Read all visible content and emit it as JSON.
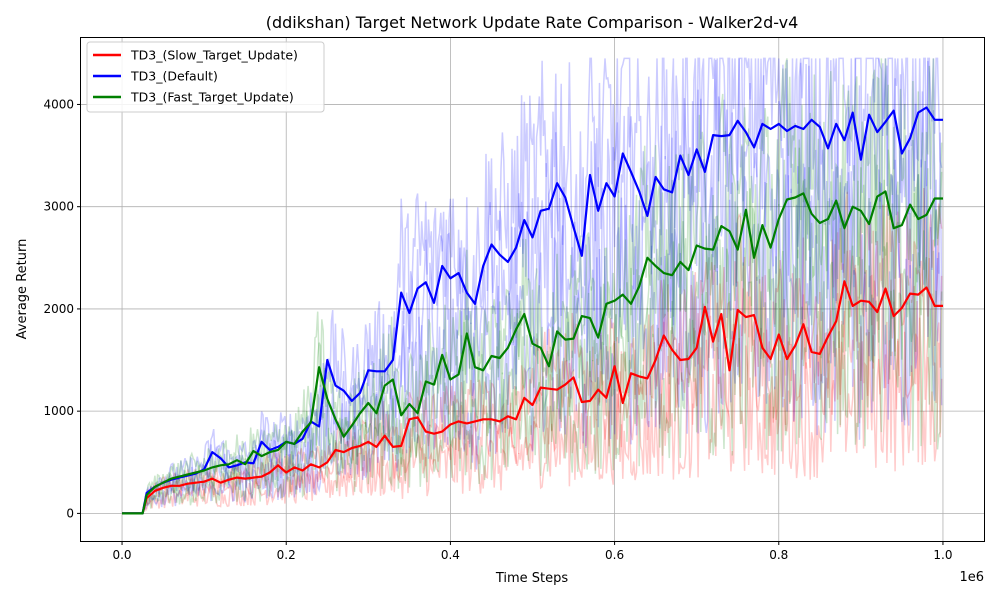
{
  "chart_data": {
    "type": "line",
    "title": "(ddikshan) Target Network Update Rate Comparison - Walker2d-v4",
    "xlabel": "Time Steps",
    "ylabel": "Average Return",
    "x_offset_label": "1e6",
    "xlim": [
      -0.05,
      1.05
    ],
    "ylim": [
      -270,
      4650
    ],
    "x_ticks": [
      0.0,
      0.2,
      0.4,
      0.6,
      0.8,
      1.0
    ],
    "x_tick_labels": [
      "0.0",
      "0.2",
      "0.4",
      "0.6",
      "0.8",
      "1.0"
    ],
    "y_ticks": [
      0,
      1000,
      2000,
      3000,
      4000
    ],
    "y_tick_labels": [
      "0",
      "1000",
      "2000",
      "3000",
      "4000"
    ],
    "grid": true,
    "legend_position": "top-left",
    "series": [
      {
        "name": "TD3_(Slow_Target_Update)",
        "color": "#ff0000",
        "x": [
          0.0,
          0.025,
          0.03,
          0.04,
          0.05,
          0.06,
          0.07,
          0.08,
          0.09,
          0.1,
          0.11,
          0.12,
          0.13,
          0.14,
          0.15,
          0.16,
          0.17,
          0.18,
          0.19,
          0.2,
          0.21,
          0.22,
          0.23,
          0.24,
          0.25,
          0.26,
          0.27,
          0.28,
          0.29,
          0.3,
          0.31,
          0.32,
          0.33,
          0.34,
          0.35,
          0.36,
          0.37,
          0.38,
          0.39,
          0.4,
          0.41,
          0.42,
          0.43,
          0.44,
          0.45,
          0.46,
          0.47,
          0.48,
          0.49,
          0.5,
          0.51,
          0.52,
          0.53,
          0.54,
          0.55,
          0.56,
          0.57,
          0.58,
          0.59,
          0.6,
          0.61,
          0.62,
          0.63,
          0.64,
          0.65,
          0.66,
          0.67,
          0.68,
          0.69,
          0.7,
          0.71,
          0.72,
          0.73,
          0.74,
          0.75,
          0.76,
          0.77,
          0.78,
          0.79,
          0.8,
          0.81,
          0.82,
          0.83,
          0.84,
          0.85,
          0.86,
          0.87,
          0.88,
          0.89,
          0.9,
          0.91,
          0.92,
          0.93,
          0.94,
          0.95,
          0.96,
          0.97,
          0.98,
          0.99,
          1.0
        ],
        "y": [
          0,
          0,
          150,
          220,
          250,
          270,
          270,
          290,
          300,
          310,
          340,
          300,
          330,
          350,
          340,
          350,
          360,
          400,
          470,
          400,
          450,
          420,
          480,
          450,
          500,
          620,
          600,
          640,
          660,
          700,
          650,
          760,
          650,
          660,
          920,
          940,
          800,
          780,
          800,
          870,
          900,
          880,
          900,
          920,
          920,
          900,
          950,
          920,
          1130,
          1060,
          1230,
          1220,
          1210,
          1260,
          1330,
          1090,
          1100,
          1210,
          1130,
          1440,
          1080,
          1370,
          1340,
          1320,
          1500,
          1740,
          1600,
          1500,
          1510,
          1620,
          2020,
          1680,
          1950,
          1400,
          1990,
          1920,
          1940,
          1620,
          1510,
          1750,
          1510,
          1640,
          1850,
          1580,
          1560,
          1730,
          1880,
          2270,
          2030,
          2080,
          2070,
          1970,
          2200,
          1930,
          2010,
          2150,
          2140,
          2210,
          2030,
          2030
        ]
      },
      {
        "name": "TD3_(Default)",
        "color": "#0000ff",
        "x": [
          0.0,
          0.025,
          0.03,
          0.04,
          0.05,
          0.06,
          0.07,
          0.08,
          0.09,
          0.1,
          0.11,
          0.12,
          0.13,
          0.14,
          0.15,
          0.16,
          0.17,
          0.18,
          0.19,
          0.2,
          0.21,
          0.22,
          0.23,
          0.24,
          0.25,
          0.26,
          0.27,
          0.28,
          0.29,
          0.3,
          0.31,
          0.32,
          0.33,
          0.34,
          0.35,
          0.36,
          0.37,
          0.38,
          0.39,
          0.4,
          0.41,
          0.42,
          0.43,
          0.44,
          0.45,
          0.46,
          0.47,
          0.48,
          0.49,
          0.5,
          0.51,
          0.52,
          0.53,
          0.54,
          0.55,
          0.56,
          0.57,
          0.58,
          0.59,
          0.6,
          0.61,
          0.62,
          0.63,
          0.64,
          0.65,
          0.66,
          0.67,
          0.68,
          0.69,
          0.7,
          0.71,
          0.72,
          0.73,
          0.74,
          0.75,
          0.76,
          0.77,
          0.78,
          0.79,
          0.8,
          0.81,
          0.82,
          0.83,
          0.84,
          0.85,
          0.86,
          0.87,
          0.88,
          0.89,
          0.9,
          0.91,
          0.92,
          0.93,
          0.94,
          0.95,
          0.96,
          0.97,
          0.98,
          0.99,
          1.0
        ],
        "y": [
          0,
          0,
          200,
          260,
          300,
          330,
          350,
          370,
          390,
          430,
          600,
          540,
          450,
          470,
          500,
          490,
          700,
          620,
          650,
          700,
          680,
          730,
          900,
          850,
          1500,
          1250,
          1200,
          1100,
          1180,
          1400,
          1390,
          1390,
          1500,
          2160,
          1960,
          2200,
          2260,
          2060,
          2420,
          2300,
          2350,
          2160,
          2050,
          2420,
          2630,
          2530,
          2460,
          2600,
          2870,
          2700,
          2960,
          2980,
          3230,
          3090,
          2800,
          2520,
          3310,
          2960,
          3230,
          3100,
          3520,
          3340,
          3150,
          2910,
          3290,
          3170,
          3140,
          3500,
          3310,
          3560,
          3340,
          3700,
          3690,
          3700,
          3840,
          3730,
          3580,
          3810,
          3760,
          3810,
          3740,
          3790,
          3760,
          3850,
          3780,
          3570,
          3810,
          3650,
          3920,
          3460,
          3900,
          3730,
          3830,
          3940,
          3520,
          3670,
          3920,
          3970,
          3850,
          3850
        ]
      },
      {
        "name": "TD3_(Fast_Target_Update)",
        "color": "#008000",
        "x": [
          0.0,
          0.025,
          0.03,
          0.04,
          0.05,
          0.06,
          0.07,
          0.08,
          0.09,
          0.1,
          0.11,
          0.12,
          0.13,
          0.14,
          0.15,
          0.16,
          0.17,
          0.18,
          0.19,
          0.2,
          0.21,
          0.22,
          0.23,
          0.24,
          0.25,
          0.26,
          0.27,
          0.28,
          0.29,
          0.3,
          0.31,
          0.32,
          0.33,
          0.34,
          0.35,
          0.36,
          0.37,
          0.38,
          0.39,
          0.4,
          0.41,
          0.42,
          0.43,
          0.44,
          0.45,
          0.46,
          0.47,
          0.48,
          0.49,
          0.5,
          0.51,
          0.52,
          0.53,
          0.54,
          0.55,
          0.56,
          0.57,
          0.58,
          0.59,
          0.6,
          0.61,
          0.62,
          0.63,
          0.64,
          0.65,
          0.66,
          0.67,
          0.68,
          0.69,
          0.7,
          0.71,
          0.72,
          0.73,
          0.74,
          0.75,
          0.76,
          0.77,
          0.78,
          0.79,
          0.8,
          0.81,
          0.82,
          0.83,
          0.84,
          0.85,
          0.86,
          0.87,
          0.88,
          0.89,
          0.9,
          0.91,
          0.92,
          0.93,
          0.94,
          0.95,
          0.96,
          0.97,
          0.98,
          0.99,
          1.0
        ],
        "y": [
          0,
          0,
          180,
          260,
          300,
          340,
          360,
          380,
          400,
          420,
          450,
          470,
          480,
          520,
          480,
          610,
          560,
          600,
          620,
          700,
          680,
          800,
          890,
          1430,
          1120,
          920,
          750,
          860,
          980,
          1080,
          980,
          1250,
          1310,
          960,
          1070,
          980,
          1290,
          1260,
          1550,
          1310,
          1360,
          1760,
          1430,
          1400,
          1540,
          1520,
          1620,
          1800,
          1950,
          1660,
          1620,
          1440,
          1780,
          1700,
          1710,
          1930,
          1910,
          1720,
          2050,
          2080,
          2140,
          2050,
          2220,
          2500,
          2420,
          2350,
          2330,
          2460,
          2380,
          2620,
          2590,
          2580,
          2810,
          2760,
          2580,
          2970,
          2500,
          2820,
          2600,
          2880,
          3070,
          3090,
          3130,
          2930,
          2840,
          2880,
          3060,
          2790,
          3000,
          2960,
          2830,
          3100,
          3150,
          2790,
          2820,
          3020,
          2880,
          2920,
          3080,
          3080
        ]
      }
    ]
  }
}
